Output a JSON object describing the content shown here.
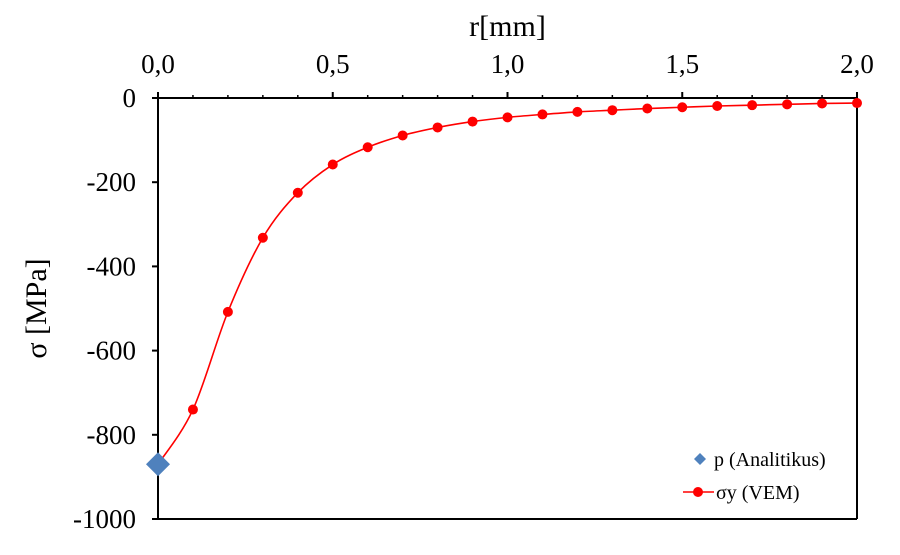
{
  "chart_data": {
    "type": "line",
    "title": "",
    "xlabel": "r[mm]",
    "ylabel": "σ [MPa]",
    "xlim": [
      0,
      2
    ],
    "ylim": [
      -1000,
      0
    ],
    "x_ticks": [
      0,
      0.5,
      1,
      1.5,
      2
    ],
    "x_tick_labels": [
      "0,0",
      "0,5",
      "1,0",
      "1,5",
      "2,0"
    ],
    "y_ticks": [
      0,
      -200,
      -400,
      -600,
      -800,
      -1000
    ],
    "y_tick_labels": [
      "0",
      "-200",
      "-400",
      "-600",
      "-800",
      "-1000"
    ],
    "x_axis_position": "top",
    "grid": false,
    "legend_position": "bottom-right",
    "series": [
      {
        "name": "p (Analitikus)",
        "marker": "diamond",
        "line": false,
        "color": "#4f81bd",
        "x": [
          0
        ],
        "y": [
          -870
        ]
      },
      {
        "name": "σy (VEM)",
        "marker": "circle",
        "line": true,
        "color": "#ff0000",
        "x": [
          0,
          0.1,
          0.2,
          0.3,
          0.4,
          0.5,
          0.6,
          0.7,
          0.8,
          0.9,
          1.0,
          1.1,
          1.2,
          1.3,
          1.4,
          1.5,
          1.6,
          1.7,
          1.8,
          1.9,
          2.0
        ],
        "y": [
          -870,
          -740,
          -508,
          -332,
          -225,
          -158,
          -117,
          -89,
          -70,
          -56,
          -46,
          -39,
          -33,
          -29,
          -25,
          -22,
          -19,
          -17,
          -15,
          -13,
          -12
        ]
      }
    ]
  }
}
